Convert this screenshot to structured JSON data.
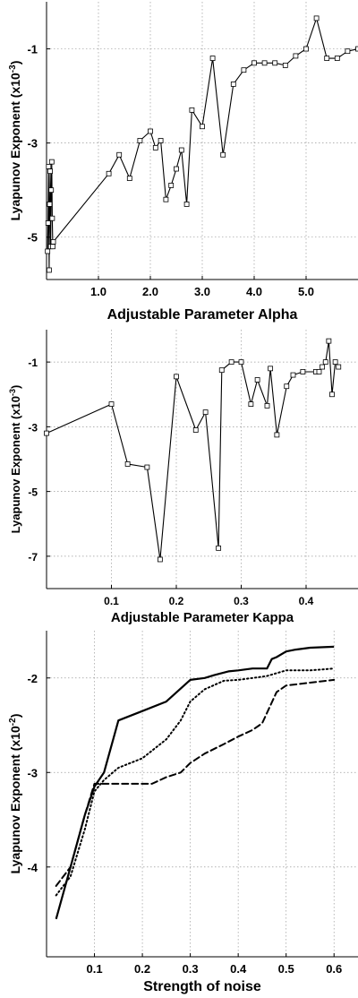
{
  "chart_data": [
    {
      "type": "line",
      "xlabel": "Adjustable Parameter Alpha",
      "ylabel": "Lyapunov Exponent (x10",
      "ylabel_exp": "-3",
      "ylabel_close": ")",
      "xlim": [
        0.0,
        6.0
      ],
      "ylim": [
        -5.9,
        0.0
      ],
      "xticks": [
        1.0,
        2.0,
        3.0,
        4.0,
        5.0
      ],
      "xtick_labels": [
        "1.0",
        "2.0",
        "3.0",
        "4.0",
        "5.0"
      ],
      "yticks": [
        -1,
        -3,
        -5
      ],
      "ytick_labels": [
        "-1",
        "-3",
        "-5"
      ],
      "grid": true,
      "marker": "square",
      "series": [
        {
          "x": [
            0.02,
            0.03,
            0.04,
            0.05,
            0.06,
            0.07,
            0.08,
            0.09,
            0.1,
            0.11,
            0.12,
            0.13,
            1.2,
            1.4,
            1.6,
            1.8,
            2.0,
            2.1,
            2.2,
            2.3,
            2.4,
            2.5,
            2.6,
            2.7,
            2.8,
            3.0,
            3.2,
            3.4,
            3.6,
            3.8,
            4.0,
            4.2,
            4.4,
            4.6,
            4.8,
            5.0,
            5.2,
            5.4,
            5.6,
            5.8,
            6.0
          ],
          "values": [
            -5.3,
            -4.7,
            -3.5,
            -5.7,
            -4.3,
            -3.6,
            -5.2,
            -4.0,
            -3.4,
            -4.6,
            -5.2,
            -5.1,
            -3.65,
            -3.25,
            -3.75,
            -2.95,
            -2.75,
            -3.1,
            -2.95,
            -4.2,
            -3.9,
            -3.55,
            -3.15,
            -4.3,
            -2.3,
            -2.65,
            -1.2,
            -3.25,
            -1.75,
            -1.45,
            -1.3,
            -1.3,
            -1.3,
            -1.35,
            -1.15,
            -1.0,
            -0.35,
            -1.2,
            -1.2,
            -1.05,
            -1.0
          ]
        }
      ]
    },
    {
      "type": "line",
      "xlabel": "Adjustable Parameter Kappa",
      "ylabel": "Lyapunov Exponent (x10",
      "ylabel_exp": "-3",
      "ylabel_close": ")",
      "xlim": [
        0.0,
        0.48
      ],
      "ylim": [
        -8.0,
        0.0
      ],
      "xticks": [
        0.1,
        0.2,
        0.3,
        0.4
      ],
      "xtick_labels": [
        "0.1",
        "0.2",
        "0.3",
        "0.4"
      ],
      "yticks": [
        -1,
        -3,
        -5,
        -7
      ],
      "ytick_labels": [
        "-1",
        "-3",
        "-5",
        "-7"
      ],
      "grid": true,
      "marker": "square",
      "series": [
        {
          "x": [
            0.0,
            0.1,
            0.125,
            0.155,
            0.175,
            0.2,
            0.23,
            0.245,
            0.265,
            0.27,
            0.285,
            0.3,
            0.315,
            0.325,
            0.34,
            0.345,
            0.355,
            0.37,
            0.38,
            0.395,
            0.415,
            0.42,
            0.425,
            0.43,
            0.435,
            0.44,
            0.445,
            0.45
          ],
          "values": [
            -3.2,
            -2.3,
            -4.15,
            -4.25,
            -7.1,
            -1.45,
            -3.1,
            -2.55,
            -6.75,
            -1.25,
            -1.0,
            -1.0,
            -2.3,
            -1.55,
            -2.35,
            -1.2,
            -3.25,
            -1.75,
            -1.4,
            -1.3,
            -1.3,
            -1.3,
            -1.15,
            -1.0,
            -0.35,
            -2.0,
            -1.0,
            -1.15
          ]
        }
      ]
    },
    {
      "type": "line",
      "xlabel": "Strength of noise",
      "ylabel": "Lyapunov Exponent (x10",
      "ylabel_exp": "-2",
      "ylabel_close": ")",
      "xlim": [
        0.0,
        0.65
      ],
      "ylim": [
        -4.95,
        -1.5
      ],
      "xticks": [
        0.1,
        0.2,
        0.3,
        0.4,
        0.5,
        0.6
      ],
      "xtick_labels": [
        "0.1",
        "0.2",
        "0.3",
        "0.4",
        "0.5",
        "0.6"
      ],
      "yticks": [
        -2,
        -3,
        -4
      ],
      "ytick_labels": [
        "-2",
        "-3",
        "-4"
      ],
      "grid": true,
      "series": [
        {
          "style": "solid",
          "x": [
            0.02,
            0.05,
            0.08,
            0.1,
            0.12,
            0.15,
            0.2,
            0.25,
            0.3,
            0.33,
            0.35,
            0.38,
            0.4,
            0.43,
            0.46,
            0.47,
            0.48,
            0.5,
            0.52,
            0.55,
            0.6
          ],
          "values": [
            -4.55,
            -4.0,
            -3.45,
            -3.15,
            -3.0,
            -2.45,
            -2.35,
            -2.25,
            -2.02,
            -2.0,
            -1.97,
            -1.93,
            -1.92,
            -1.9,
            -1.9,
            -1.8,
            -1.78,
            -1.72,
            -1.7,
            -1.68,
            -1.67
          ]
        },
        {
          "style": "dotted",
          "x": [
            0.02,
            0.05,
            0.08,
            0.1,
            0.12,
            0.15,
            0.2,
            0.25,
            0.28,
            0.3,
            0.33,
            0.37,
            0.4,
            0.43,
            0.46,
            0.5,
            0.55,
            0.6
          ],
          "values": [
            -4.3,
            -4.1,
            -3.6,
            -3.2,
            -3.08,
            -2.95,
            -2.85,
            -2.65,
            -2.45,
            -2.25,
            -2.12,
            -2.03,
            -2.02,
            -2.0,
            -1.98,
            -1.92,
            -1.92,
            -1.9
          ]
        },
        {
          "style": "dashed",
          "x": [
            0.02,
            0.05,
            0.08,
            0.1,
            0.15,
            0.2,
            0.22,
            0.25,
            0.28,
            0.3,
            0.33,
            0.37,
            0.4,
            0.43,
            0.45,
            0.48,
            0.5,
            0.55,
            0.6
          ],
          "values": [
            -4.2,
            -4.0,
            -3.45,
            -3.12,
            -3.12,
            -3.12,
            -3.12,
            -3.05,
            -3.0,
            -2.9,
            -2.8,
            -2.7,
            -2.62,
            -2.55,
            -2.48,
            -2.15,
            -2.08,
            -2.05,
            -2.02
          ]
        }
      ]
    }
  ]
}
